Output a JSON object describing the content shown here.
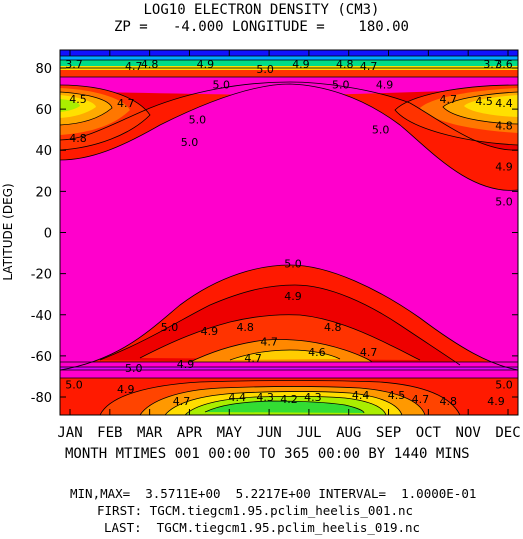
{
  "title": {
    "line1": "LOG10 ELECTRON DENSITY (CM3)",
    "line2": "ZP =   -4.000 LONGITUDE =    180.00"
  },
  "chart_data": {
    "type": "heatmap",
    "title": "LOG10 ELECTRON DENSITY (CM3)",
    "subtitle": "ZP =   -4.000 LONGITUDE =    180.00",
    "xlabel": "MONTH MTIMES 001 00:00 TO 365 00:00 BY 1440 MINS",
    "ylabel": "LATITUDE (DEG)",
    "x_ticks": [
      "JAN",
      "FEB",
      "MAR",
      "APR",
      "MAY",
      "JUN",
      "JUL",
      "AUG",
      "SEP",
      "OCT",
      "NOV",
      "DEC"
    ],
    "y_ticks": [
      80,
      60,
      40,
      20,
      0,
      -20,
      -40,
      -60,
      -80
    ],
    "xlim": [
      1,
      365
    ],
    "ylim": [
      -88.75,
      88.75
    ],
    "min": 3.5711,
    "max": 5.2217,
    "interval": 0.1,
    "contour_labels": [
      {
        "text": "3.7",
        "month": 0.1,
        "lat": 82
      },
      {
        "text": "4.7",
        "month": 1.6,
        "lat": 81
      },
      {
        "text": "4.8",
        "month": 2.0,
        "lat": 82
      },
      {
        "text": "4.9",
        "month": 3.4,
        "lat": 82
      },
      {
        "text": "5.0",
        "month": 4.9,
        "lat": 79.5
      },
      {
        "text": "4.9",
        "month": 5.8,
        "lat": 82
      },
      {
        "text": "4.8",
        "month": 6.9,
        "lat": 82
      },
      {
        "text": "4.7",
        "month": 7.5,
        "lat": 81
      },
      {
        "text": "3.7",
        "month": 10.6,
        "lat": 82
      },
      {
        "text": "3.6",
        "month": 11.3,
        "lat": 82
      },
      {
        "text": "4.5",
        "month": 0.2,
        "lat": 65
      },
      {
        "text": "4.7",
        "month": 1.4,
        "lat": 63
      },
      {
        "text": "5.0",
        "month": 3.8,
        "lat": 72
      },
      {
        "text": "5.0",
        "month": 6.8,
        "lat": 72
      },
      {
        "text": "4.9",
        "month": 7.9,
        "lat": 72
      },
      {
        "text": "4.7",
        "month": 9.5,
        "lat": 65
      },
      {
        "text": "4.5",
        "month": 10.4,
        "lat": 64
      },
      {
        "text": "4.4",
        "month": 11.2,
        "lat": 63
      },
      {
        "text": "4.8",
        "month": 0.2,
        "lat": 46
      },
      {
        "text": "5.0",
        "month": 3.2,
        "lat": 55
      },
      {
        "text": "5.0",
        "month": 3.0,
        "lat": 44
      },
      {
        "text": "4.8",
        "month": 11.3,
        "lat": 52
      },
      {
        "text": "5.0",
        "month": 7.8,
        "lat": 50
      },
      {
        "text": "4.9",
        "month": 11.3,
        "lat": 32
      },
      {
        "text": "5.0",
        "month": 11.3,
        "lat": 15
      },
      {
        "text": "5.0",
        "month": 5.6,
        "lat": -15
      },
      {
        "text": "4.9",
        "month": 5.6,
        "lat": -31
      },
      {
        "text": "5.0",
        "month": 2.5,
        "lat": -46
      },
      {
        "text": "4.9",
        "month": 3.5,
        "lat": -48
      },
      {
        "text": "4.8",
        "month": 4.4,
        "lat": -46
      },
      {
        "text": "4.8",
        "month": 6.6,
        "lat": -46
      },
      {
        "text": "4.7",
        "month": 5.0,
        "lat": -53
      },
      {
        "text": "4.7",
        "month": 4.6,
        "lat": -61
      },
      {
        "text": "4.6",
        "month": 6.2,
        "lat": -58
      },
      {
        "text": "4.7",
        "month": 7.5,
        "lat": -58
      },
      {
        "text": "5.0",
        "month": 1.6,
        "lat": -66
      },
      {
        "text": "4.9",
        "month": 2.9,
        "lat": -64
      },
      {
        "text": "5.0",
        "month": 0.1,
        "lat": -74
      },
      {
        "text": "4.9",
        "month": 1.4,
        "lat": -76
      },
      {
        "text": "4.7",
        "month": 2.8,
        "lat": -82
      },
      {
        "text": "4.4",
        "month": 4.2,
        "lat": -80
      },
      {
        "text": "4.3",
        "month": 4.9,
        "lat": -80
      },
      {
        "text": "4.2",
        "month": 5.5,
        "lat": -81
      },
      {
        "text": "4.3",
        "month": 6.1,
        "lat": -80
      },
      {
        "text": "4.4",
        "month": 7.3,
        "lat": -79
      },
      {
        "text": "4.5",
        "month": 8.2,
        "lat": -79
      },
      {
        "text": "4.7",
        "month": 8.8,
        "lat": -81
      },
      {
        "text": "4.8",
        "month": 9.5,
        "lat": -82
      },
      {
        "text": "4.9",
        "month": 10.7,
        "lat": -82
      },
      {
        "text": "5.0",
        "month": 11.3,
        "lat": -74
      }
    ]
  },
  "footer": {
    "minmax": "MIN,MAX=  3.5711E+00  5.2217E+00 INTERVAL=  1.0000E-01",
    "first": "FIRST: TGCM.tiegcm1.95.pclim_heelis_001.nc",
    "last": "LAST:  TGCM.tiegcm1.95.pclim_heelis_019.nc"
  }
}
